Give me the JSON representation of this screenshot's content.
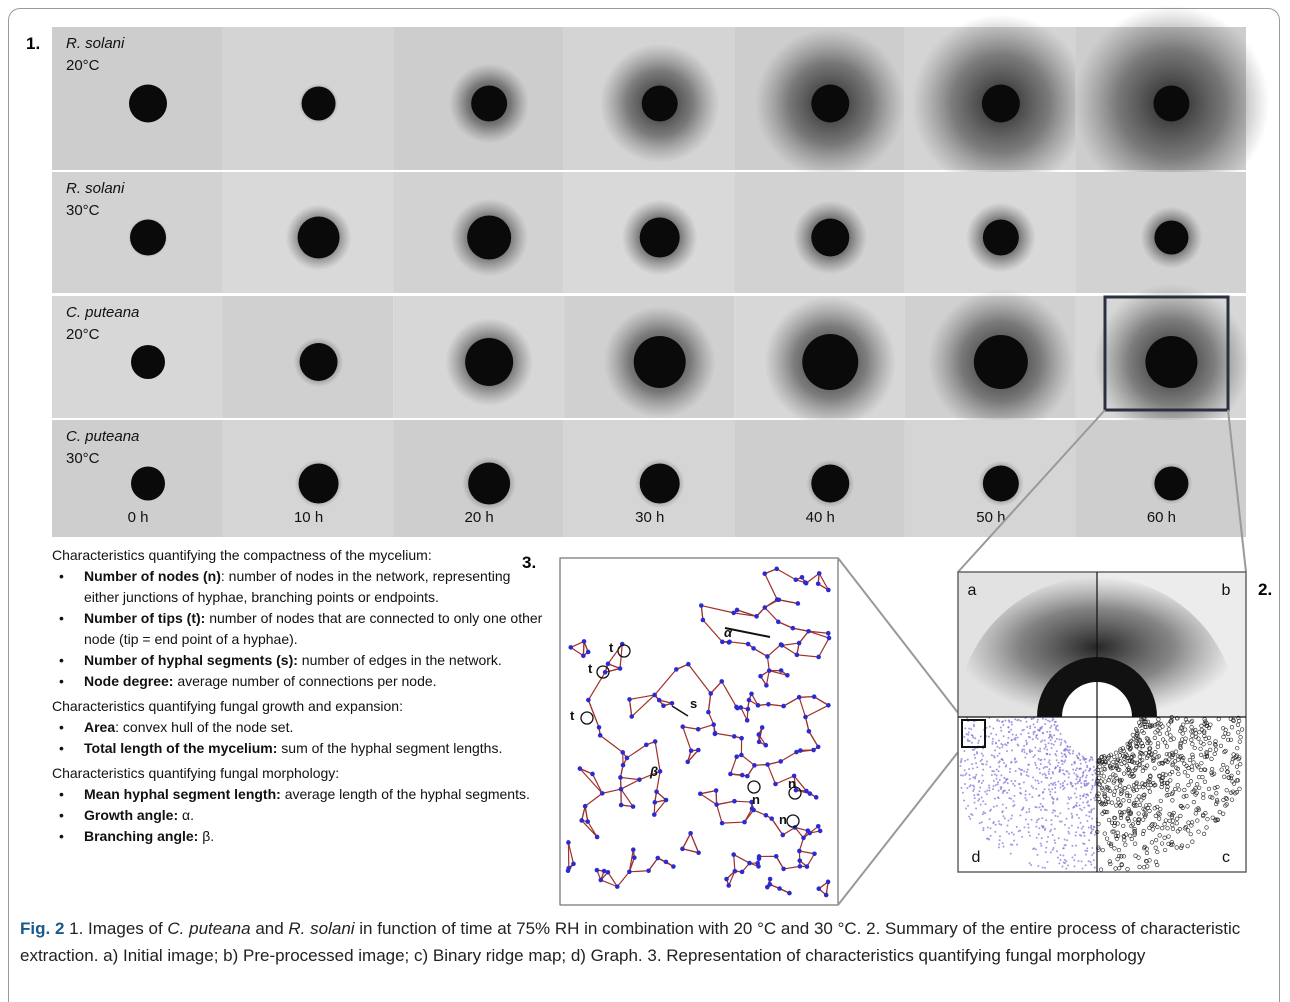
{
  "panel1": {
    "label": "1.",
    "rows": [
      {
        "species": "R. solani",
        "temperature": "20°C"
      },
      {
        "species": "R. solani",
        "temperature": "30°C"
      },
      {
        "species": "C. puteana",
        "temperature": "20°C"
      },
      {
        "species": "C. puteana",
        "temperature": "30°C"
      }
    ],
    "times": [
      "0 h",
      "10 h",
      "20 h",
      "30 h",
      "40 h",
      "50 h",
      "60 h"
    ]
  },
  "characteristics": [
    {
      "heading": "Characteristics quantifying the compactness of the mycelium:",
      "items": [
        {
          "term": "Number of nodes (n)",
          "description": ": number of nodes in the network, representing either junctions of hyphae, branching points or endpoints."
        },
        {
          "term": "Number of tips (t):",
          "description": " number of nodes that are connected to only one other node (tip = end point of a hyphae)."
        },
        {
          "term": "Number of hyphal segments (s):",
          "description": " number of edges in the network."
        },
        {
          "term": "Node degree:",
          "description": " average number of connections per node."
        }
      ]
    },
    {
      "heading": "Characteristics quantifying fungal growth and expansion:",
      "items": [
        {
          "term": "Area",
          "description": ": convex hull of the node set."
        },
        {
          "term": "Total length of the mycelium:",
          "description": " sum of the hyphal segment lengths."
        }
      ]
    },
    {
      "heading": "Characteristics quantifying fungal morphology:",
      "items": [
        {
          "term": "Mean hyphal segment length:",
          "description": " average length of the hyphal segments."
        },
        {
          "term": "Growth angle:",
          "description": " α."
        },
        {
          "term": "Branching angle:",
          "description": " β."
        }
      ]
    }
  ],
  "panel3": {
    "label": "3.",
    "annotations": [
      "t",
      "t",
      "t",
      "s",
      "α",
      "β",
      "n",
      "n",
      "n"
    ]
  },
  "panel2": {
    "label": "2.",
    "quadrants": [
      "a",
      "b",
      "c",
      "d"
    ]
  },
  "caption": {
    "parts": [
      "Fig. 2",
      " 1. Images of ",
      "C. puteana",
      " and ",
      "R. solani",
      " in function of time at 75% RH in combination with 20 °C and 30 °C. 2. Summary of the entire process of characteristic extraction. a) Initial image; b) Pre-processed image; c) Binary ridge map; d) Graph. 3. Representation of characteristics quantifying fungal morphology"
    ]
  }
}
